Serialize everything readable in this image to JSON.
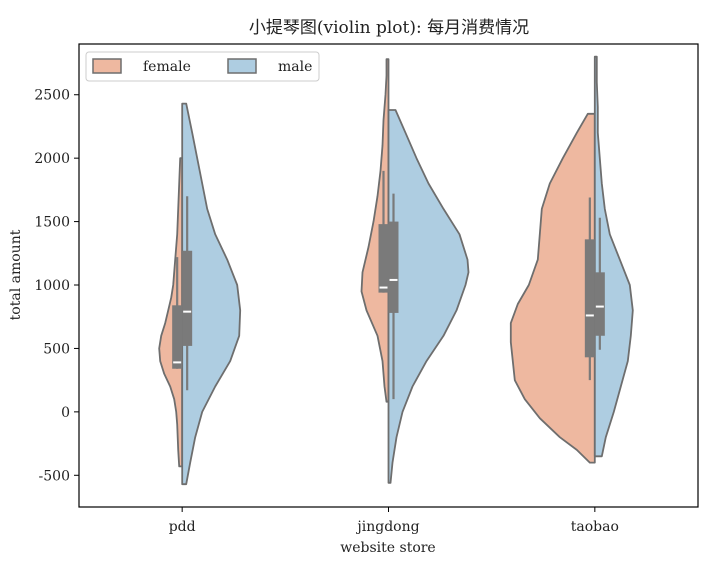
{
  "chart_data": {
    "type": "violin",
    "title": "小提琴图(violin plot): 每月消费情况",
    "xlabel": "website store",
    "ylabel": "total amount",
    "categories": [
      "pdd",
      "jingdong",
      "taobao"
    ],
    "ylim": [
      -750,
      2900
    ],
    "yticks": [
      -500,
      0,
      500,
      1000,
      1500,
      2000,
      2500
    ],
    "grid": false,
    "legend_position": "top-left",
    "split": true,
    "series": [
      {
        "name": "female",
        "color": "#eeb8a0",
        "side": "left",
        "violins": [
          {
            "category": "pdd",
            "density": [
              [
                -430,
                3
              ],
              [
                -300,
                4
              ],
              [
                -100,
                5
              ],
              [
                0,
                6
              ],
              [
                100,
                8
              ],
              [
                200,
                12
              ],
              [
                300,
                18
              ],
              [
                400,
                22
              ],
              [
                500,
                23
              ],
              [
                600,
                21
              ],
              [
                700,
                17
              ],
              [
                800,
                14
              ],
              [
                900,
                11
              ],
              [
                1000,
                9
              ],
              [
                1200,
                7
              ],
              [
                1400,
                5
              ],
              [
                1600,
                4
              ],
              [
                1800,
                3
              ],
              [
                2000,
                2
              ]
            ],
            "box": {
              "whisker_low": 340,
              "q1": 340,
              "median": 390,
              "q3": 840,
              "whisker_high": 1220
            }
          },
          {
            "category": "jingdong",
            "density": [
              [
                80,
                2
              ],
              [
                200,
                4
              ],
              [
                400,
                6
              ],
              [
                600,
                11
              ],
              [
                800,
                22
              ],
              [
                950,
                27
              ],
              [
                1100,
                26
              ],
              [
                1300,
                20
              ],
              [
                1500,
                15
              ],
              [
                1700,
                11
              ],
              [
                1900,
                8
              ],
              [
                2100,
                6
              ],
              [
                2300,
                5
              ],
              [
                2500,
                3
              ],
              [
                2650,
                2
              ],
              [
                2780,
                2
              ]
            ],
            "box": {
              "whisker_low": 940,
              "q1": 940,
              "median": 980,
              "q3": 1480,
              "whisker_high": 1900
            }
          },
          {
            "category": "taobao",
            "density": [
              [
                -400,
                5
              ],
              [
                -300,
                18
              ],
              [
                -200,
                35
              ],
              [
                -50,
                55
              ],
              [
                100,
                70
              ],
              [
                250,
                80
              ],
              [
                400,
                82
              ],
              [
                550,
                84
              ],
              [
                700,
                84
              ],
              [
                850,
                77
              ],
              [
                1000,
                66
              ],
              [
                1200,
                57
              ],
              [
                1400,
                55
              ],
              [
                1600,
                53
              ],
              [
                1800,
                45
              ],
              [
                2000,
                32
              ],
              [
                2200,
                18
              ],
              [
                2350,
                7
              ]
            ],
            "box": {
              "whisker_low": 250,
              "q1": 430,
              "median": 760,
              "q3": 1360,
              "whisker_high": 1690
            }
          }
        ]
      },
      {
        "name": "male",
        "color": "#aecde1",
        "side": "right",
        "violins": [
          {
            "category": "pdd",
            "density": [
              [
                -570,
                4
              ],
              [
                -400,
                8
              ],
              [
                -200,
                13
              ],
              [
                0,
                20
              ],
              [
                200,
                33
              ],
              [
                400,
                48
              ],
              [
                600,
                57
              ],
              [
                800,
                58
              ],
              [
                1000,
                55
              ],
              [
                1200,
                45
              ],
              [
                1400,
                33
              ],
              [
                1600,
                25
              ],
              [
                1800,
                20
              ],
              [
                2000,
                15
              ],
              [
                2200,
                10
              ],
              [
                2430,
                4
              ]
            ],
            "box": {
              "whisker_low": 170,
              "q1": 520,
              "median": 790,
              "q3": 1270,
              "whisker_high": 1700
            }
          },
          {
            "category": "jingdong",
            "density": [
              [
                -560,
                2
              ],
              [
                -400,
                4
              ],
              [
                -200,
                8
              ],
              [
                0,
                14
              ],
              [
                200,
                24
              ],
              [
                400,
                38
              ],
              [
                600,
                55
              ],
              [
                800,
                68
              ],
              [
                1000,
                77
              ],
              [
                1100,
                80
              ],
              [
                1200,
                79
              ],
              [
                1400,
                71
              ],
              [
                1600,
                55
              ],
              [
                1800,
                40
              ],
              [
                2000,
                28
              ],
              [
                2200,
                17
              ],
              [
                2380,
                7
              ]
            ],
            "box": {
              "whisker_low": 100,
              "q1": 780,
              "median": 1040,
              "q3": 1500,
              "whisker_high": 1720
            }
          },
          {
            "category": "taobao",
            "density": [
              [
                -350,
                7
              ],
              [
                -200,
                11
              ],
              [
                0,
                19
              ],
              [
                200,
                26
              ],
              [
                400,
                33
              ],
              [
                600,
                36
              ],
              [
                800,
                38
              ],
              [
                1000,
                35
              ],
              [
                1200,
                25
              ],
              [
                1400,
                15
              ],
              [
                1600,
                10
              ],
              [
                1800,
                7
              ],
              [
                2000,
                5
              ],
              [
                2200,
                3
              ],
              [
                2400,
                3
              ],
              [
                2600,
                2
              ],
              [
                2800,
                2
              ]
            ],
            "box": {
              "whisker_low": 490,
              "q1": 600,
              "median": 830,
              "q3": 1100,
              "whisker_high": 1530
            }
          }
        ]
      }
    ]
  }
}
